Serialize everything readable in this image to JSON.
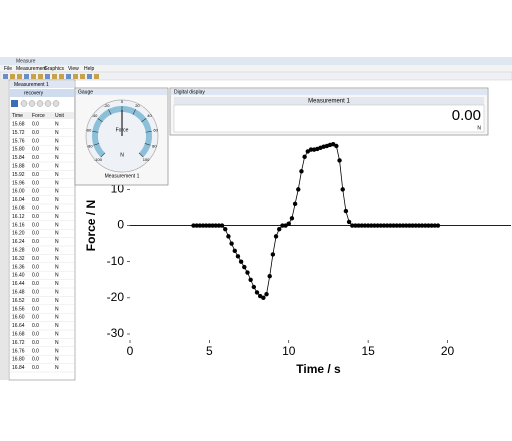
{
  "window": {
    "title": "Measure",
    "menu": [
      "File",
      "Measurement",
      "Graphics",
      "View",
      "Help"
    ]
  },
  "sidebar": {
    "tab": "Measurement 1",
    "nav": "recovery",
    "table": {
      "header": [
        "Time",
        "Force",
        "Unit"
      ],
      "rows": [
        [
          "15.68",
          "0.0",
          "N"
        ],
        [
          "15.72",
          "0.0",
          "N"
        ],
        [
          "15.76",
          "0.0",
          "N"
        ],
        [
          "15.80",
          "0.0",
          "N"
        ],
        [
          "15.84",
          "0.0",
          "N"
        ],
        [
          "15.88",
          "0.0",
          "N"
        ],
        [
          "15.92",
          "0.0",
          "N"
        ],
        [
          "15.96",
          "0.0",
          "N"
        ],
        [
          "16.00",
          "0.0",
          "N"
        ],
        [
          "16.04",
          "0.0",
          "N"
        ],
        [
          "16.08",
          "0.0",
          "N"
        ],
        [
          "16.12",
          "0.0",
          "N"
        ],
        [
          "16.16",
          "0.0",
          "N"
        ],
        [
          "16.20",
          "0.0",
          "N"
        ],
        [
          "16.24",
          "0.0",
          "N"
        ],
        [
          "16.28",
          "0.0",
          "N"
        ],
        [
          "16.32",
          "0.0",
          "N"
        ],
        [
          "16.36",
          "0.0",
          "N"
        ],
        [
          "16.40",
          "0.0",
          "N"
        ],
        [
          "16.44",
          "0.0",
          "N"
        ],
        [
          "16.48",
          "0.0",
          "N"
        ],
        [
          "16.52",
          "0.0",
          "N"
        ],
        [
          "16.56",
          "0.0",
          "N"
        ],
        [
          "16.60",
          "0.0",
          "N"
        ],
        [
          "16.64",
          "0.0",
          "N"
        ],
        [
          "16.68",
          "0.0",
          "N"
        ],
        [
          "16.72",
          "0.0",
          "N"
        ],
        [
          "16.76",
          "0.0",
          "N"
        ],
        [
          "16.80",
          "0.0",
          "N"
        ],
        [
          "16.84",
          "0.0",
          "N"
        ]
      ]
    }
  },
  "gauge": {
    "title": "Gauge",
    "label": "Force",
    "unit": "N",
    "name": "Measurement 1",
    "value": 0,
    "ticks": [
      -100,
      -80,
      -60,
      -40,
      -20,
      0,
      20,
      40,
      60,
      80,
      100
    ]
  },
  "display": {
    "title": "Digital display",
    "name": "Measurement 1",
    "reading": "0.00",
    "unit": "N"
  },
  "chart_data": {
    "type": "line",
    "xlabel": "Time / s",
    "ylabel": "Force / N",
    "color": "#000000",
    "xlim": [
      0,
      24
    ],
    "ylim": [
      -30,
      35
    ],
    "xticks": [
      0,
      5,
      10,
      15,
      20
    ],
    "yticks": [
      -30,
      -20,
      -10,
      0,
      10
    ],
    "x": [
      4,
      4.2,
      4.4,
      4.6,
      4.8,
      5,
      5.2,
      5.4,
      5.6,
      5.8,
      6,
      6.2,
      6.4,
      6.6,
      6.8,
      7,
      7.2,
      7.4,
      7.6,
      7.8,
      8,
      8.2,
      8.4,
      8.6,
      8.8,
      9,
      9.2,
      9.4,
      9.6,
      9.8,
      10,
      10.2,
      10.4,
      10.6,
      10.8,
      11,
      11.2,
      11.4,
      11.6,
      11.8,
      12,
      12.2,
      12.4,
      12.6,
      12.8,
      13,
      13.2,
      13.4,
      13.6,
      13.8,
      14,
      14.2,
      14.4,
      14.6,
      14.8,
      15,
      15.2,
      15.4,
      15.6,
      15.8,
      16,
      16.2,
      16.4,
      16.6,
      16.8,
      17,
      17.2,
      17.4,
      17.6,
      17.8,
      18,
      18.2,
      18.4,
      18.6,
      18.8,
      19,
      19.2,
      19.4
    ],
    "values": [
      0,
      0,
      0,
      0,
      0,
      0,
      0,
      0,
      0,
      0,
      -1,
      -3,
      -5,
      -7,
      -8.5,
      -10,
      -11.5,
      -13,
      -15,
      -17,
      -18.5,
      -19.5,
      -20,
      -19,
      -14,
      -8,
      -3,
      -1,
      0,
      0,
      0.5,
      2,
      6,
      10,
      15,
      19,
      20.5,
      21,
      21,
      21.2,
      21.5,
      21.8,
      22,
      22.3,
      22.5,
      22,
      18,
      10,
      4,
      1,
      0,
      0,
      0,
      0,
      0,
      0,
      0,
      0,
      0,
      0,
      0,
      0,
      0,
      0,
      0,
      0,
      0,
      0,
      0,
      0,
      0,
      0,
      0,
      0,
      0,
      0,
      0,
      0
    ]
  }
}
